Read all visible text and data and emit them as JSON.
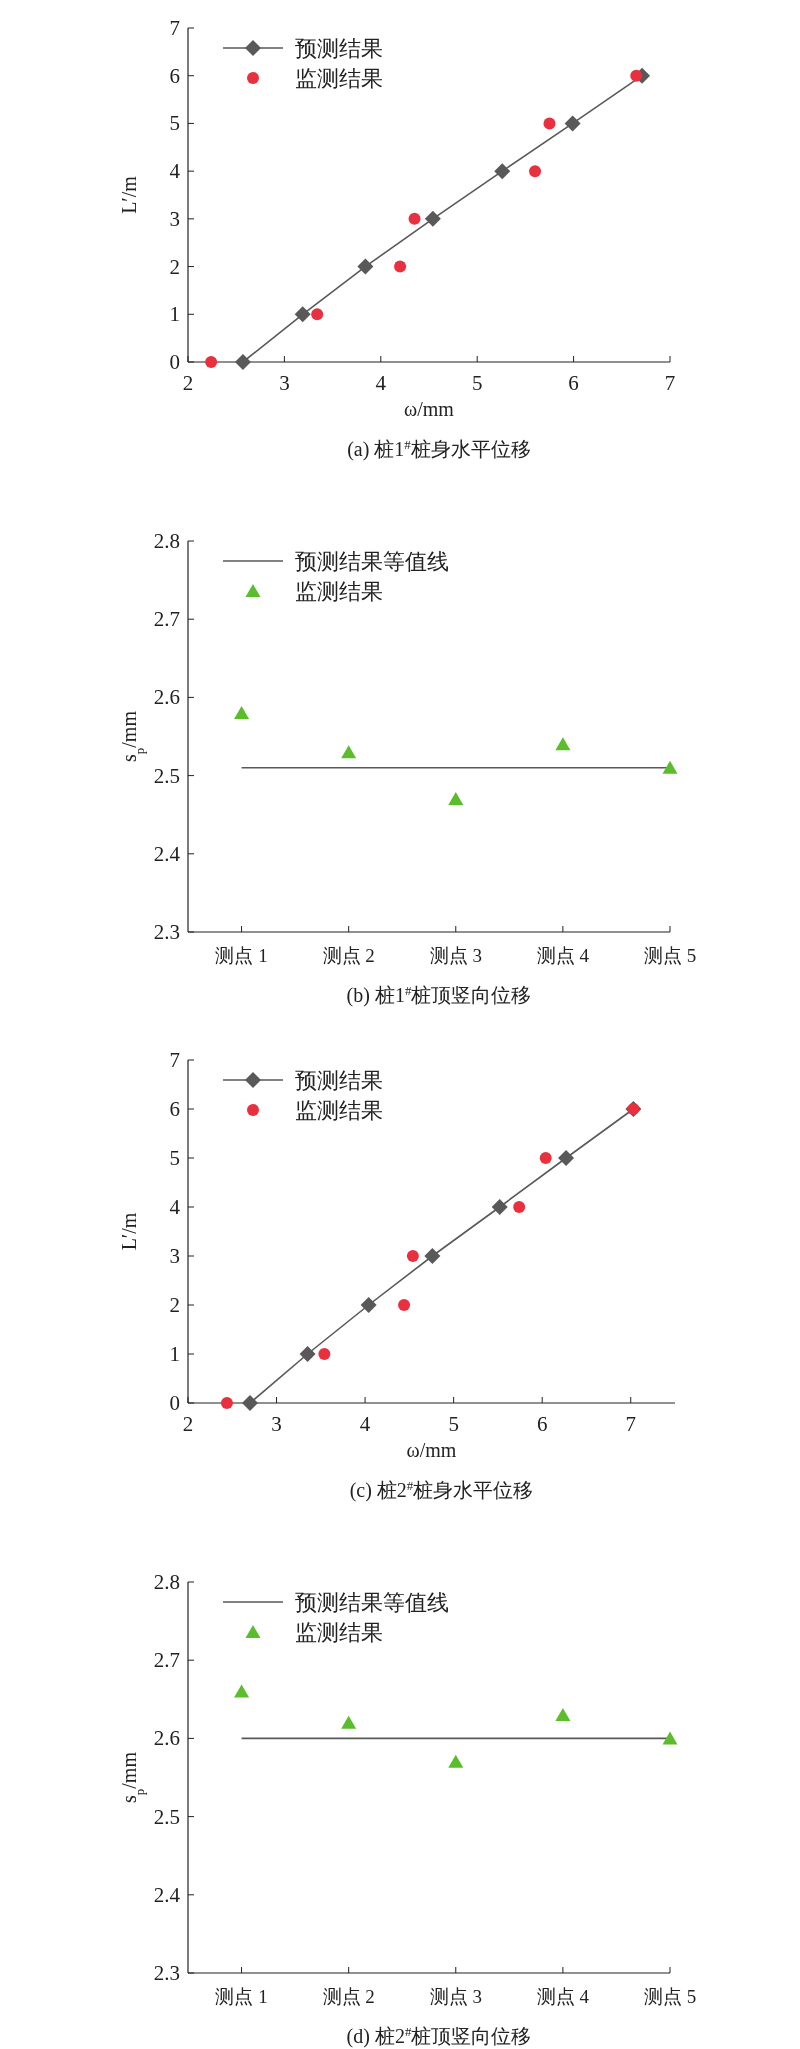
{
  "chart_data": [
    {
      "type": "line",
      "title": "(a) 桩1$^{#}$桩身水平位移",
      "xlabel": "ω/mm",
      "ylabel": "L′/m",
      "xlim": [
        2,
        7
      ],
      "xticks": [
        2,
        3,
        4,
        5,
        6,
        7
      ],
      "ylim": [
        0,
        7
      ],
      "yticks": [
        0,
        1,
        2,
        3,
        4,
        5,
        6,
        7
      ],
      "legend": "top left",
      "series": [
        {
          "name": "预测结果",
          "marker": "diamond",
          "color": "#595959",
          "x": [
            2.57,
            3.19,
            3.84,
            4.54,
            5.26,
            5.99,
            6.71
          ],
          "values": [
            0,
            1,
            2,
            3,
            4,
            5,
            6
          ]
        },
        {
          "name": "监测结果",
          "type": "scatter",
          "marker": "circle",
          "color": "#e8303f",
          "x": [
            2.24,
            3.34,
            4.2,
            4.35,
            5.6,
            5.75,
            6.65
          ],
          "values": [
            0,
            1,
            2,
            3,
            4,
            5,
            6
          ]
        }
      ]
    },
    {
      "type": "line",
      "title": "(b) 桩1$^{#}$桩顶竖向位移",
      "ylabel": "s$_{p}$/mm",
      "categories": [
        "测点 1",
        "测点 2",
        "测点 3",
        "测点 4",
        "测点 5"
      ],
      "ylim": [
        2.3,
        2.8
      ],
      "yticks": [
        2.3,
        2.4,
        2.5,
        2.6,
        2.7,
        2.8
      ],
      "legend": "top left",
      "series": [
        {
          "name": "预测结果等值线",
          "marker": "none",
          "color": "#595959",
          "values": [
            2.51,
            2.51,
            2.51,
            2.51,
            2.51
          ]
        },
        {
          "name": "监测结果",
          "type": "scatter",
          "marker": "triangle",
          "color": "#5bbd2b",
          "values": [
            2.58,
            2.53,
            2.47,
            2.54,
            2.51
          ]
        }
      ]
    },
    {
      "type": "line",
      "title": "(c) 桩2$^{#}$桩身水平位移",
      "xlabel": "ω/mm",
      "ylabel": "L′/m",
      "xlim": [
        2,
        7.5
      ],
      "xticks": [
        2,
        3,
        4,
        5,
        6,
        7
      ],
      "ylim": [
        0,
        7
      ],
      "yticks": [
        0,
        1,
        2,
        3,
        4,
        5,
        6,
        7
      ],
      "legend": "top left",
      "series": [
        {
          "name": "预测结果",
          "marker": "diamond",
          "color": "#595959",
          "x": [
            2.7,
            3.35,
            4.04,
            4.76,
            5.52,
            6.27,
            7.03
          ],
          "values": [
            0,
            1,
            2,
            3,
            4,
            5,
            6
          ]
        },
        {
          "name": "监测结果",
          "type": "scatter",
          "marker": "circle",
          "color": "#e8303f",
          "x": [
            2.44,
            3.54,
            4.44,
            4.54,
            5.74,
            6.04,
            7.03
          ],
          "values": [
            0,
            1,
            2,
            3,
            4,
            5,
            6
          ]
        }
      ]
    },
    {
      "type": "line",
      "title": "(d) 桩2$^{#}$桩顶竖向位移",
      "ylabel": "s$_{p}$/mm",
      "categories": [
        "测点 1",
        "测点 2",
        "测点 3",
        "测点 4",
        "测点 5"
      ],
      "ylim": [
        2.3,
        2.8
      ],
      "yticks": [
        2.3,
        2.4,
        2.5,
        2.6,
        2.7,
        2.8
      ],
      "legend": "top left",
      "series": [
        {
          "name": "预测结果等值线",
          "marker": "none",
          "color": "#595959",
          "values": [
            2.6,
            2.6,
            2.6,
            2.6,
            2.6
          ]
        },
        {
          "name": "监测结果",
          "type": "scatter",
          "marker": "triangle",
          "color": "#5bbd2b",
          "values": [
            2.66,
            2.62,
            2.57,
            2.63,
            2.6
          ]
        }
      ]
    }
  ]
}
